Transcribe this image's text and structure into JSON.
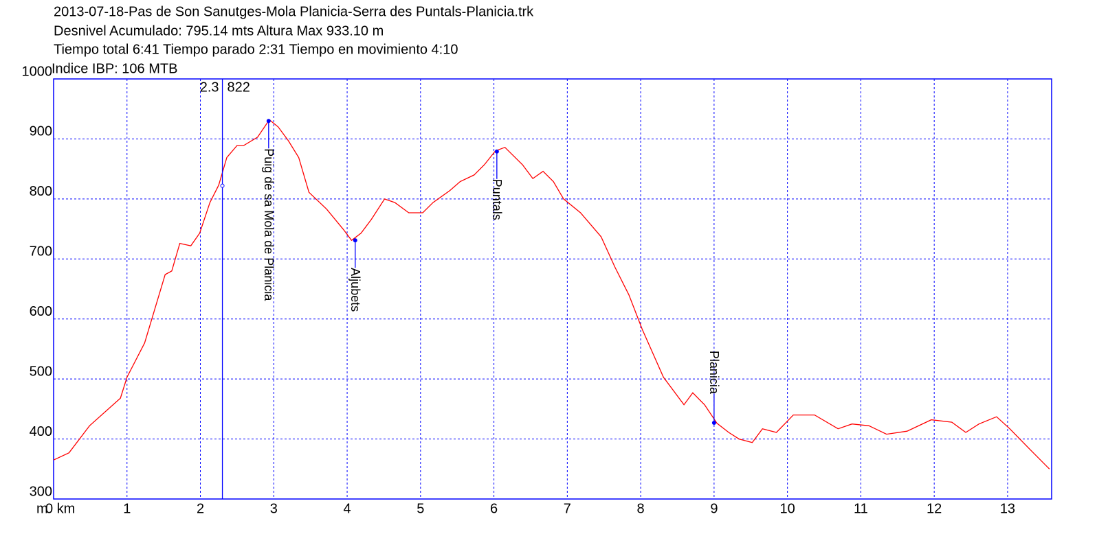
{
  "chart_data": {
    "type": "line",
    "title_lines": [
      "2013-07-18-Pas de Son Sanutges-Mola Planicia-Serra des Puntals-Planicia.trk",
      "Desnivel Acumulado: 795.14 mts  Altura Max 933.10 m",
      "Tiempo total 6:41 Tiempo parado 2:31 Tiempo en movimiento 4:10",
      "Indice IBP: 106 MTB"
    ],
    "y_unit": "m",
    "xlim": [
      0,
      13.6
    ],
    "ylim": [
      300,
      1000
    ],
    "xticks": [
      {
        "value": 0,
        "label": "0 km"
      },
      1,
      2,
      3,
      4,
      5,
      6,
      7,
      8,
      9,
      10,
      11,
      12,
      13
    ],
    "yticks": [
      300,
      400,
      500,
      600,
      700,
      800,
      900,
      1000
    ],
    "grid": true,
    "x": [
      0,
      0.21,
      0.49,
      0.91,
      1.0,
      1.24,
      1.52,
      1.61,
      1.72,
      1.87,
      1.99,
      2.13,
      2.25,
      2.36,
      2.5,
      2.59,
      2.78,
      2.94,
      3.06,
      3.2,
      3.34,
      3.48,
      3.72,
      3.95,
      4.06,
      4.19,
      4.33,
      4.51,
      4.65,
      4.84,
      5.03,
      5.17,
      5.4,
      5.54,
      5.73,
      5.87,
      6.02,
      6.15,
      6.39,
      6.53,
      6.67,
      6.81,
      6.95,
      7.18,
      7.46,
      7.65,
      7.84,
      8.02,
      8.31,
      8.59,
      8.71,
      8.87,
      9.04,
      9.2,
      9.34,
      9.52,
      9.66,
      9.85,
      10.08,
      10.37,
      10.69,
      10.88,
      11.11,
      11.35,
      11.63,
      11.96,
      12.24,
      12.43,
      12.61,
      12.85,
      13.03,
      13.31,
      13.57
    ],
    "series": [
      {
        "color": "#ff0000",
        "values": [
          365,
          377,
          422,
          468,
          503,
          560,
          674,
          680,
          726,
          722,
          743,
          794,
          823,
          869,
          889,
          889,
          903,
          932,
          920,
          897,
          869,
          811,
          783,
          749,
          731,
          743,
          766,
          800,
          794,
          777,
          777,
          794,
          814,
          829,
          840,
          857,
          880,
          886,
          857,
          834,
          846,
          829,
          800,
          777,
          737,
          686,
          640,
          583,
          503,
          457,
          477,
          457,
          426,
          411,
          400,
          394,
          417,
          411,
          440,
          440,
          417,
          425,
          422,
          408,
          413,
          432,
          428,
          411,
          425,
          437,
          417,
          382,
          350
        ]
      }
    ],
    "cursor": {
      "x": 2.3,
      "y": 822
    },
    "waypoints": [
      {
        "name": "Puig de sa Mola de Planicia",
        "x": 2.93,
        "y": 930,
        "label_position": "below"
      },
      {
        "name": "Aljubets",
        "x": 4.11,
        "y": 731,
        "label_position": "below"
      },
      {
        "name": "Puntals",
        "x": 6.04,
        "y": 879,
        "label_position": "below"
      },
      {
        "name": "Planicia",
        "x": 9.0,
        "y": 427,
        "label_position": "above"
      }
    ],
    "marker_color": "#0000ff"
  }
}
